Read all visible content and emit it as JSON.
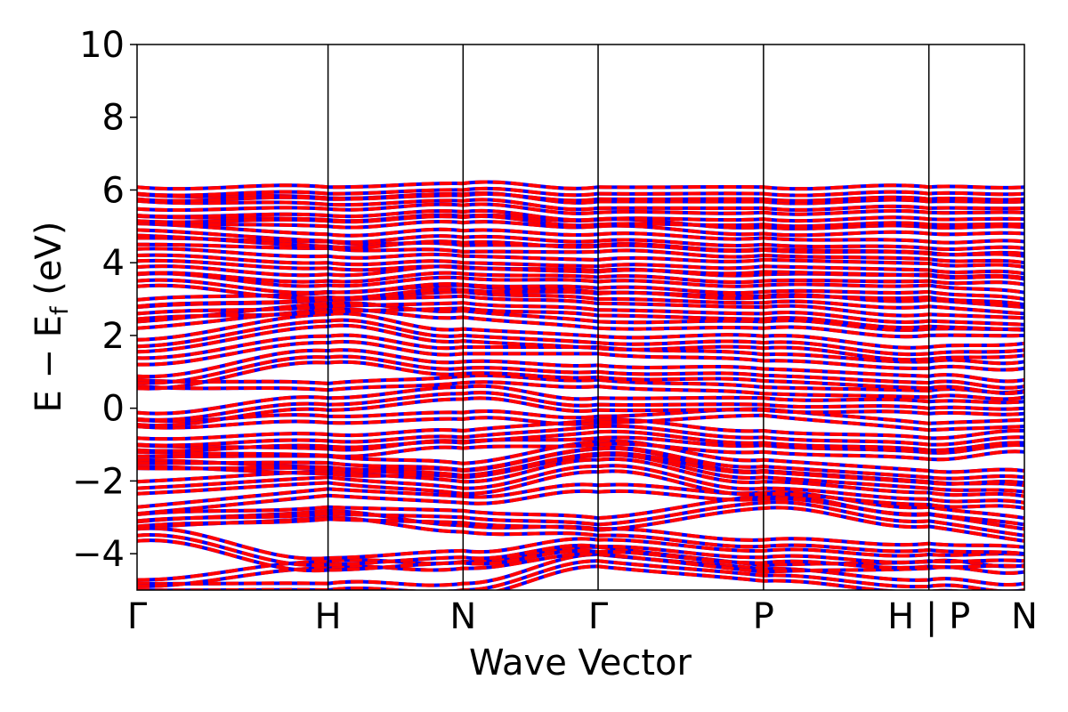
{
  "chart_data": {
    "type": "line",
    "title": "",
    "xlabel": "Wave Vector",
    "ylabel": "E − E_f (eV)",
    "ylabel_parts": {
      "main": "E − E",
      "sub": "f",
      "unit": " (eV)"
    },
    "ylim": [
      -5,
      10
    ],
    "yticks": [
      -4,
      -2,
      0,
      2,
      4,
      6,
      8,
      10
    ],
    "ytick_labels": [
      "−4",
      "−2",
      "0",
      "2",
      "4",
      "6",
      "8",
      "10"
    ],
    "kpath": [
      {
        "label": "Γ",
        "x": 0.0
      },
      {
        "label": "H",
        "x": 1.0
      },
      {
        "label": "N",
        "x": 1.707
      },
      {
        "label": "Γ",
        "x": 2.414
      },
      {
        "label": "P",
        "x": 3.28
      },
      {
        "label": "H | P",
        "x": 4.146
      },
      {
        "label": "N",
        "x": 4.646
      }
    ],
    "xlim": [
      0,
      4.646
    ],
    "grid": false,
    "legend": "none",
    "series_styles": [
      {
        "role": "spin-up",
        "color": "#0000ff",
        "style": "solid"
      },
      {
        "role": "spin-down",
        "color": "#ff0000",
        "style": "dashed"
      }
    ],
    "band_energies_at_kpoints": [
      [
        -5.0,
        -5.0,
        -5.0,
        -4.2,
        -4.6,
        -4.9,
        -5.0
      ],
      [
        -4.9,
        -4.4,
        -4.4,
        -4.0,
        -4.5,
        -4.4,
        -4.5
      ],
      [
        -3.5,
        -4.3,
        -4.1,
        -3.8,
        -4.1,
        -4.2,
        -4.2
      ],
      [
        -3.3,
        -3.0,
        -3.4,
        -3.5,
        -3.8,
        -3.9,
        -4.0
      ],
      [
        -3.1,
        -2.9,
        -3.0,
        -3.2,
        -2.6,
        -3.1,
        -3.5
      ],
      [
        -2.9,
        -2.4,
        -2.6,
        -2.3,
        -2.5,
        -2.9,
        -3.2
      ],
      [
        -2.2,
        -1.9,
        -2.2,
        -1.6,
        -2.2,
        -2.5,
        -2.6
      ],
      [
        -1.6,
        -1.8,
        -1.9,
        -1.3,
        -1.9,
        -2.2,
        -2.3
      ],
      [
        -1.5,
        -1.5,
        -1.7,
        -1.1,
        -1.6,
        -1.9,
        -1.9
      ],
      [
        -1.2,
        -1.3,
        -1.1,
        -1.0,
        -1.2,
        -1.4,
        -1.2
      ],
      [
        -1.0,
        -0.9,
        -0.8,
        -0.5,
        -0.8,
        -1.0,
        -0.8
      ],
      [
        -0.5,
        -0.4,
        -0.3,
        -0.4,
        -0.2,
        -0.6,
        -0.5
      ],
      [
        -0.3,
        0.1,
        0.4,
        0.1,
        0.1,
        0.0,
        0.0
      ],
      [
        0.6,
        0.5,
        0.7,
        0.6,
        0.4,
        0.3,
        0.3
      ],
      [
        0.7,
        1.4,
        1.1,
        1.0,
        0.9,
        0.7,
        0.6
      ],
      [
        1.2,
        1.8,
        1.5,
        1.5,
        1.3,
        1.1,
        1.1
      ],
      [
        1.7,
        2.4,
        2.0,
        1.8,
        1.8,
        1.5,
        1.6
      ],
      [
        2.2,
        2.7,
        2.5,
        2.2,
        2.2,
        2.0,
        2.0
      ],
      [
        2.6,
        2.8,
        2.9,
        2.7,
        2.6,
        2.4,
        2.3
      ],
      [
        2.8,
        3.0,
        3.2,
        3.0,
        2.9,
        2.8,
        2.6
      ],
      [
        3.5,
        3.2,
        3.4,
        3.3,
        3.2,
        3.2,
        3.0
      ],
      [
        3.7,
        3.5,
        3.7,
        3.6,
        3.5,
        3.5,
        3.4
      ],
      [
        4.2,
        4.0,
        4.0,
        3.9,
        3.9,
        3.8,
        3.7
      ],
      [
        4.5,
        4.4,
        4.3,
        4.3,
        4.2,
        4.1,
        4.0
      ],
      [
        4.9,
        4.6,
        4.7,
        4.6,
        4.5,
        4.4,
        4.4
      ],
      [
        5.1,
        5.0,
        5.1,
        5.0,
        4.8,
        4.8,
        4.8
      ],
      [
        5.3,
        5.3,
        5.4,
        5.2,
        5.2,
        5.2,
        5.2
      ],
      [
        5.7,
        5.6,
        5.7,
        5.5,
        5.5,
        5.5,
        5.5
      ],
      [
        5.9,
        5.9,
        6.0,
        5.9,
        5.9,
        5.9,
        5.9
      ]
    ]
  }
}
